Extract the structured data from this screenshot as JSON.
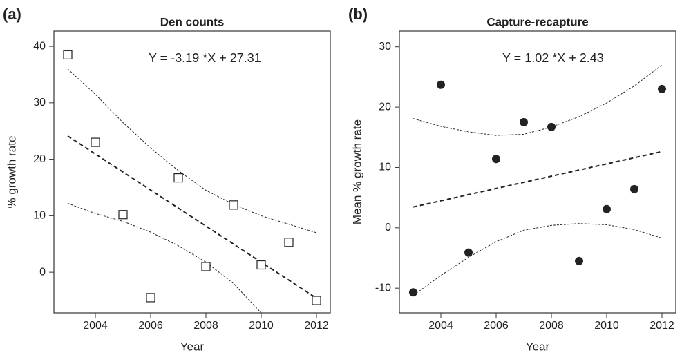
{
  "chart_data": [
    {
      "type": "scatter",
      "panel_label": "(a)",
      "title": "Den counts",
      "annotation": "Y =  -3.19 *X +  27.31",
      "xlabel": "Year",
      "ylabel": "% growth rate",
      "x": [
        2003,
        2004,
        2005,
        2006,
        2007,
        2008,
        2009,
        2010,
        2011,
        2012
      ],
      "values": [
        38.5,
        23.0,
        10.2,
        -4.5,
        16.7,
        1.0,
        11.9,
        1.3,
        5.3,
        -5.0
      ],
      "marker": "open-square",
      "color": "#222222",
      "fit": [
        24.12,
        20.93,
        17.74,
        14.55,
        11.36,
        8.17,
        4.98,
        1.79,
        -1.4,
        -4.59
      ],
      "ci_upper": [
        36.0,
        31.5,
        26.5,
        22.0,
        18.0,
        14.5,
        12.0,
        10.0,
        8.5,
        7.0
      ],
      "ci_lower": [
        12.2,
        10.4,
        9.0,
        7.1,
        4.7,
        1.8,
        -2.0,
        -7.2,
        null,
        null
      ],
      "xlim": [
        2002.5,
        2012.5
      ],
      "ylim": [
        -7.2,
        42.7
      ],
      "xticks": [
        2004,
        2006,
        2008,
        2010,
        2012
      ],
      "yticks": [
        0,
        10,
        20,
        30,
        40
      ]
    },
    {
      "type": "scatter",
      "panel_label": "(b)",
      "title": "Capture-recapture",
      "annotation": "Y =  1.02 *X +  2.43",
      "xlabel": "Year",
      "ylabel": "Mean % growth rate",
      "x": [
        2003,
        2004,
        2005,
        2006,
        2007,
        2008,
        2009,
        2010,
        2011,
        2012
      ],
      "values": [
        -10.7,
        23.7,
        -4.1,
        11.4,
        17.5,
        16.7,
        -5.5,
        3.1,
        6.4,
        23.0
      ],
      "marker": "filled-circle",
      "color": "#222222",
      "fit": [
        3.45,
        4.47,
        5.49,
        6.51,
        7.53,
        8.55,
        9.57,
        10.59,
        11.61,
        12.63
      ],
      "ci_upper": [
        18.1,
        16.8,
        15.9,
        15.3,
        15.5,
        16.7,
        18.4,
        20.7,
        23.5,
        27.0
      ],
      "ci_lower": [
        -11.2,
        -7.9,
        -4.9,
        -2.3,
        -0.4,
        0.4,
        0.7,
        0.5,
        -0.3,
        -1.7
      ],
      "xlim": [
        2002.5,
        2012.5
      ],
      "ylim": [
        -14.1,
        32.6
      ],
      "xticks": [
        2004,
        2006,
        2008,
        2010,
        2012
      ],
      "yticks": [
        -10,
        0,
        10,
        20,
        30
      ]
    }
  ]
}
